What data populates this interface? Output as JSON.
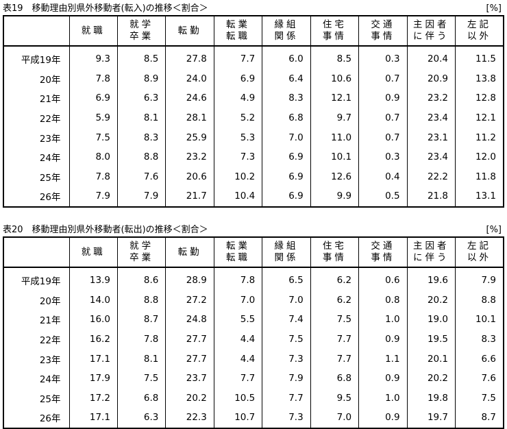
{
  "units": "[%]",
  "columns": [
    {
      "l1": "就職",
      "l2": ""
    },
    {
      "l1": "就学",
      "l2": "卒業"
    },
    {
      "l1": "転勤",
      "l2": ""
    },
    {
      "l1": "転業",
      "l2": "転職"
    },
    {
      "l1": "縁組",
      "l2": "関係"
    },
    {
      "l1": "住宅",
      "l2": "事情"
    },
    {
      "l1": "交通",
      "l2": "事情"
    },
    {
      "l1": "主因者",
      "l2": "に伴う"
    },
    {
      "l1": "左記",
      "l2": "以外"
    }
  ],
  "tables": [
    {
      "title": "表19　移動理由別県外移動者(転入)の推移＜割合＞",
      "rows": [
        {
          "year": "平成19年",
          "values": [
            "9.3",
            "8.5",
            "27.8",
            "7.7",
            "6.0",
            "8.5",
            "0.3",
            "20.4",
            "11.5"
          ]
        },
        {
          "year": "20年",
          "values": [
            "7.8",
            "8.9",
            "24.0",
            "6.9",
            "6.4",
            "10.6",
            "0.7",
            "20.9",
            "13.8"
          ]
        },
        {
          "year": "21年",
          "values": [
            "6.9",
            "6.3",
            "24.6",
            "4.9",
            "8.3",
            "12.1",
            "0.9",
            "23.2",
            "12.8"
          ]
        },
        {
          "year": "22年",
          "values": [
            "5.9",
            "8.1",
            "28.1",
            "5.2",
            "6.8",
            "9.7",
            "0.7",
            "23.4",
            "12.1"
          ]
        },
        {
          "year": "23年",
          "values": [
            "7.5",
            "8.3",
            "25.9",
            "5.3",
            "7.0",
            "11.0",
            "0.7",
            "23.1",
            "11.2"
          ]
        },
        {
          "year": "24年",
          "values": [
            "8.0",
            "8.8",
            "23.2",
            "7.3",
            "6.9",
            "10.1",
            "0.3",
            "23.4",
            "12.0"
          ]
        },
        {
          "year": "25年",
          "values": [
            "7.8",
            "7.6",
            "20.6",
            "10.2",
            "6.9",
            "12.6",
            "0.4",
            "22.2",
            "11.8"
          ]
        },
        {
          "year": "26年",
          "values": [
            "7.9",
            "7.9",
            "21.7",
            "10.4",
            "6.9",
            "9.9",
            "0.5",
            "21.8",
            "13.1"
          ]
        }
      ]
    },
    {
      "title": "表20　移動理由別県外移動者(転出)の推移＜割合＞",
      "rows": [
        {
          "year": "平成19年",
          "values": [
            "13.9",
            "8.6",
            "28.9",
            "7.8",
            "6.5",
            "6.2",
            "0.6",
            "19.6",
            "7.9"
          ]
        },
        {
          "year": "20年",
          "values": [
            "14.0",
            "8.8",
            "27.2",
            "7.0",
            "7.0",
            "6.2",
            "0.8",
            "20.2",
            "8.8"
          ]
        },
        {
          "year": "21年",
          "values": [
            "16.0",
            "8.7",
            "24.8",
            "5.5",
            "7.4",
            "7.5",
            "1.0",
            "19.0",
            "10.1"
          ]
        },
        {
          "year": "22年",
          "values": [
            "16.2",
            "7.8",
            "27.7",
            "4.4",
            "7.5",
            "7.7",
            "0.9",
            "19.5",
            "8.3"
          ]
        },
        {
          "year": "23年",
          "values": [
            "17.1",
            "8.1",
            "27.7",
            "4.4",
            "7.3",
            "7.7",
            "1.1",
            "20.1",
            "6.6"
          ]
        },
        {
          "year": "24年",
          "values": [
            "17.9",
            "7.5",
            "23.7",
            "7.7",
            "7.9",
            "6.8",
            "0.9",
            "20.2",
            "7.6"
          ]
        },
        {
          "year": "25年",
          "values": [
            "17.2",
            "6.8",
            "20.2",
            "10.5",
            "7.7",
            "9.5",
            "1.0",
            "19.8",
            "7.5"
          ]
        },
        {
          "year": "26年",
          "values": [
            "17.1",
            "6.3",
            "22.3",
            "10.7",
            "7.3",
            "7.0",
            "0.9",
            "19.7",
            "8.7"
          ]
        }
      ]
    }
  ]
}
